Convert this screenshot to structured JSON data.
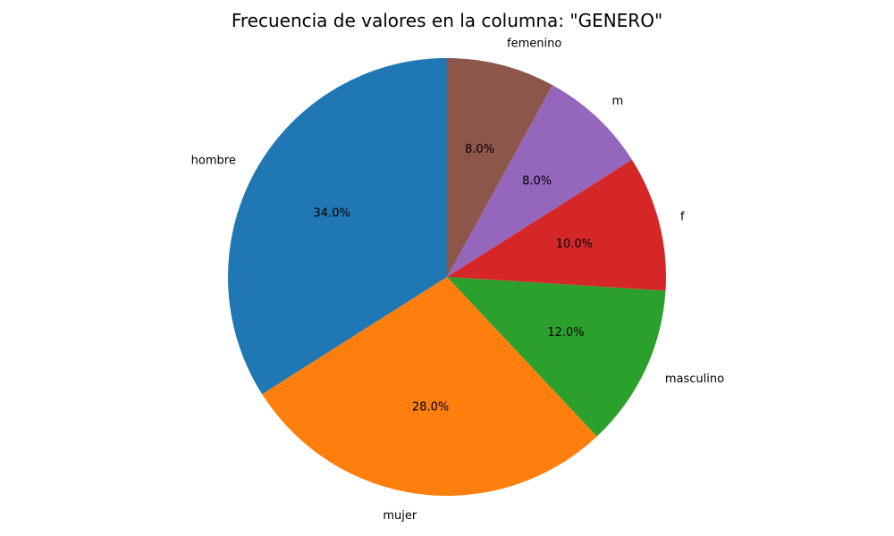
{
  "chart_data": {
    "type": "pie",
    "title": "Frecuencia de valores en la columna: \"GENERO\"",
    "start_angle_deg": 90,
    "direction": "counterclockwise",
    "categories": [
      "hombre",
      "mujer",
      "masculino",
      "f",
      "m",
      "femenino"
    ],
    "values": [
      34.0,
      28.0,
      12.0,
      10.0,
      8.0,
      8.0
    ],
    "percent_labels": [
      "34.0%",
      "28.0%",
      "12.0%",
      "10.0%",
      "8.0%",
      "8.0%"
    ],
    "colors": [
      "#1f77b4",
      "#ff7f0e",
      "#2ca02c",
      "#d62728",
      "#9467bd",
      "#8c564b"
    ],
    "legend": "none"
  }
}
